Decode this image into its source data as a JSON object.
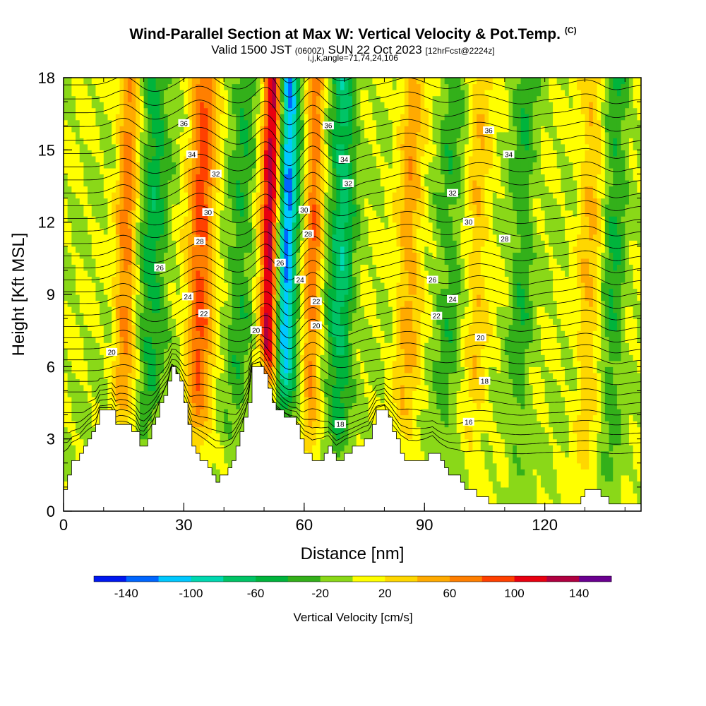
{
  "header": {
    "title": "Wind-Parallel Section at Max W: Vertical Velocity & Pot.Temp.",
    "copyright": "(C)",
    "valid_prefix": "Valid 1500 JST",
    "valid_utc": "(0600Z)",
    "valid_date": "SUN 22 Oct 2023",
    "forecast_info": "[12hrFcst@2224z]",
    "section_params": "i,j,k,angle=71,74,24,106"
  },
  "chart_data": {
    "type": "heatmap",
    "xlabel": "Distance [nm]",
    "ylabel": "Height [Kft MSL]",
    "xlim": [
      0,
      144
    ],
    "ylim": [
      0,
      18
    ],
    "x_ticks": [
      0,
      30,
      60,
      90,
      120
    ],
    "y_ticks": [
      0,
      3,
      6,
      9,
      12,
      15,
      18
    ],
    "terrain_kft": [
      [
        0,
        1.0
      ],
      [
        1,
        1.4
      ],
      [
        2,
        2.0
      ],
      [
        4,
        2.3
      ],
      [
        6,
        3.0
      ],
      [
        8,
        3.5
      ],
      [
        9,
        4.2
      ],
      [
        12,
        4.2
      ],
      [
        13,
        3.5
      ],
      [
        14,
        3.6
      ],
      [
        16,
        3.5
      ],
      [
        18,
        3.2
      ],
      [
        19,
        2.6
      ],
      [
        20,
        2.6
      ],
      [
        22,
        3.5
      ],
      [
        24,
        4.5
      ],
      [
        26,
        5.3
      ],
      [
        27,
        6.0
      ],
      [
        28,
        5.8
      ],
      [
        29,
        5.3
      ],
      [
        30,
        4.5
      ],
      [
        31,
        3.6
      ],
      [
        32,
        2.6
      ],
      [
        34,
        2.2
      ],
      [
        36,
        1.8
      ],
      [
        38,
        1.3
      ],
      [
        40,
        1.5
      ],
      [
        42,
        2.0
      ],
      [
        44,
        3.2
      ],
      [
        46,
        4.5
      ],
      [
        47,
        6.0
      ],
      [
        49,
        6.1
      ],
      [
        51,
        5.0
      ],
      [
        53,
        4.2
      ],
      [
        56,
        3.9
      ],
      [
        58,
        3.6
      ],
      [
        60,
        2.5
      ],
      [
        62,
        2.0
      ],
      [
        64,
        2.2
      ],
      [
        66,
        2.6
      ],
      [
        68,
        2.0
      ],
      [
        70,
        2.4
      ],
      [
        72,
        2.6
      ],
      [
        74,
        2.8
      ],
      [
        76,
        3.0
      ],
      [
        78,
        4.2
      ],
      [
        80,
        4.3
      ],
      [
        82,
        3.4
      ],
      [
        84,
        2.4
      ],
      [
        86,
        2.0
      ],
      [
        88,
        2.0
      ],
      [
        90,
        2.2
      ],
      [
        92,
        2.5
      ],
      [
        94,
        2.0
      ],
      [
        96,
        1.6
      ],
      [
        98,
        1.4
      ],
      [
        100,
        1.0
      ],
      [
        104,
        0.5
      ],
      [
        110,
        0.3
      ],
      [
        128,
        0.3
      ],
      [
        130,
        0.9
      ],
      [
        132,
        0.9
      ],
      [
        136,
        0.4
      ],
      [
        144,
        0.4
      ]
    ],
    "updrafts": [
      {
        "x": 15.5,
        "amp": 70,
        "width": 2.6
      },
      {
        "x": 34,
        "amp": 90,
        "width": 3.2
      },
      {
        "x": 51.5,
        "amp": 150,
        "width": 2.6
      },
      {
        "x": 62,
        "amp": 75,
        "width": 2.2
      },
      {
        "x": 86,
        "amp": 50,
        "width": 3.2
      },
      {
        "x": 103,
        "amp": 35,
        "width": 3.0
      },
      {
        "x": 131,
        "amp": 40,
        "width": 3.0
      }
    ],
    "downdrafts": [
      {
        "x": 22,
        "amp": -50,
        "width": 3.6
      },
      {
        "x": 44,
        "amp": -35,
        "width": 3.5
      },
      {
        "x": 55,
        "amp": -140,
        "width": 2.8
      },
      {
        "x": 69,
        "amp": -70,
        "width": 3.2
      },
      {
        "x": 96,
        "amp": -30,
        "width": 3.5
      },
      {
        "x": 114,
        "amp": -35,
        "width": 3.0
      },
      {
        "x": 137,
        "amp": -40,
        "width": 2.8
      }
    ],
    "theta_isentropes": [
      16,
      18,
      20,
      22,
      24,
      26,
      28,
      30,
      32,
      34,
      36
    ],
    "isentrope_labels": [
      {
        "x": 69,
        "y": 3.6,
        "text": "18"
      },
      {
        "x": 101,
        "y": 3.7,
        "text": "16"
      },
      {
        "x": 105,
        "y": 5.4,
        "text": "18"
      },
      {
        "x": 12,
        "y": 6.6,
        "text": "20"
      },
      {
        "x": 48,
        "y": 7.5,
        "text": "20"
      },
      {
        "x": 63,
        "y": 7.7,
        "text": "20"
      },
      {
        "x": 104,
        "y": 7.2,
        "text": "20"
      },
      {
        "x": 35,
        "y": 8.2,
        "text": "22"
      },
      {
        "x": 63,
        "y": 8.7,
        "text": "22"
      },
      {
        "x": 93,
        "y": 8.1,
        "text": "22"
      },
      {
        "x": 31,
        "y": 8.9,
        "text": "24"
      },
      {
        "x": 59,
        "y": 9.6,
        "text": "24"
      },
      {
        "x": 97,
        "y": 8.8,
        "text": "24"
      },
      {
        "x": 24,
        "y": 10.1,
        "text": "26"
      },
      {
        "x": 54,
        "y": 10.3,
        "text": "26"
      },
      {
        "x": 92,
        "y": 9.6,
        "text": "26"
      },
      {
        "x": 34,
        "y": 11.2,
        "text": "28"
      },
      {
        "x": 61,
        "y": 11.5,
        "text": "28"
      },
      {
        "x": 110,
        "y": 11.3,
        "text": "28"
      },
      {
        "x": 36,
        "y": 12.4,
        "text": "30"
      },
      {
        "x": 60,
        "y": 12.5,
        "text": "30"
      },
      {
        "x": 101,
        "y": 12.0,
        "text": "30"
      },
      {
        "x": 38,
        "y": 14.0,
        "text": "32"
      },
      {
        "x": 71,
        "y": 13.6,
        "text": "32"
      },
      {
        "x": 97,
        "y": 13.2,
        "text": "32"
      },
      {
        "x": 32,
        "y": 14.8,
        "text": "34"
      },
      {
        "x": 70,
        "y": 14.6,
        "text": "34"
      },
      {
        "x": 111,
        "y": 14.8,
        "text": "34"
      },
      {
        "x": 30,
        "y": 16.1,
        "text": "36"
      },
      {
        "x": 66,
        "y": 16.0,
        "text": "36"
      },
      {
        "x": 106,
        "y": 15.8,
        "text": "36"
      }
    ],
    "colorbar": {
      "title": "Vertical Velocity [cm/s]",
      "levels": [
        -160,
        -140,
        -120,
        -100,
        -80,
        -60,
        -40,
        -20,
        0,
        20,
        40,
        60,
        80,
        100,
        120,
        140,
        160
      ],
      "colors": [
        "#0018f0",
        "#0066ff",
        "#00c8ff",
        "#00d8b0",
        "#00c466",
        "#00b43c",
        "#33b01a",
        "#8ad818",
        "#ffff00",
        "#ffd700",
        "#ffaa00",
        "#ff7f00",
        "#ff4000",
        "#e80010",
        "#b00040",
        "#6a0090"
      ],
      "tick_labels": [
        "-140",
        "-100",
        "-60",
        "-20",
        "20",
        "60",
        "100",
        "140"
      ]
    }
  }
}
